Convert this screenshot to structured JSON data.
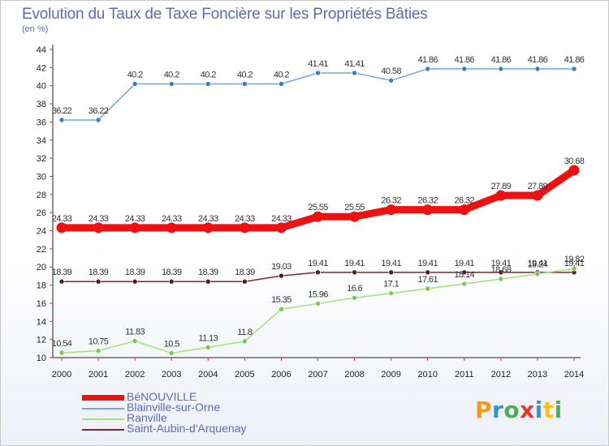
{
  "header": {
    "title": "Evolution du Taux de Taxe Foncière sur les Propriétés Bâties",
    "unit": "(en %)"
  },
  "brand": {
    "letters": [
      "P",
      "r",
      "o",
      "x",
      "i",
      "t",
      "i"
    ],
    "colors": [
      "#f29a1a",
      "#3a8fd6",
      "#4caf50",
      "#e03b2e",
      "#3a8fd6",
      "#f2c21a",
      "#4caf50"
    ]
  },
  "chart_data": {
    "type": "line",
    "x": [
      "2000",
      "2001",
      "2002",
      "2003",
      "2004",
      "2005",
      "2006",
      "2007",
      "2008",
      "2009",
      "2010",
      "2011",
      "2012",
      "2013",
      "2014"
    ],
    "ylim": [
      10,
      44
    ],
    "yticks": [
      10,
      12,
      14,
      16,
      18,
      20,
      22,
      24,
      26,
      28,
      30,
      32,
      34,
      36,
      38,
      40,
      42,
      44
    ],
    "grid": false,
    "legend_position": "bottom-left",
    "series": [
      {
        "name": "BéNOUVILLE",
        "color": "#ee1111",
        "emphasis": true,
        "values": [
          24.33,
          24.33,
          24.33,
          24.33,
          24.33,
          24.33,
          24.33,
          25.55,
          25.55,
          26.32,
          26.32,
          26.32,
          27.89,
          27.89,
          30.68
        ],
        "labels": [
          "24.33",
          "24.33",
          "24.33",
          "24.33",
          "24.33",
          "24.33",
          "24.33",
          "25.55",
          "25.55",
          "26.32",
          "26.32",
          "26.32",
          "27.89",
          "27.89",
          "30.68"
        ]
      },
      {
        "name": "Blainville-sur-Orne",
        "color": "#6fa8dc",
        "marker": "#3a7ec2",
        "values": [
          36.22,
          36.22,
          40.2,
          40.2,
          40.2,
          40.2,
          40.2,
          41.41,
          41.41,
          40.58,
          41.86,
          41.86,
          41.86,
          41.86,
          41.86
        ],
        "labels": [
          "36.22",
          "36.22",
          "40.2",
          "40.2",
          "40.2",
          "40.2",
          "40.2",
          "41.41",
          "41.41",
          "40.58",
          "41.86",
          "41.86",
          "41.86",
          "41.86",
          "41.86"
        ]
      },
      {
        "name": "Ranville",
        "color": "#a6e07a",
        "marker": "#7ec850",
        "values": [
          10.54,
          10.75,
          11.83,
          10.5,
          11.13,
          11.8,
          15.35,
          15.96,
          16.6,
          17.1,
          17.61,
          18.14,
          18.68,
          19.24,
          19.82
        ],
        "labels": [
          "10.54",
          "10.75",
          "11.83",
          "10.5",
          "11.13",
          "11.8",
          "15.35",
          "15.96",
          "16.6",
          "17.1",
          "17.61",
          "18.14",
          "18.68",
          "19.24",
          "19.82"
        ]
      },
      {
        "name": "Saint-Aubin-d'Arquenay",
        "color": "#7a2a2a",
        "marker": "#5a1a1a",
        "values": [
          18.39,
          18.39,
          18.39,
          18.39,
          18.39,
          18.39,
          19.03,
          19.41,
          19.41,
          19.41,
          19.41,
          19.41,
          19.41,
          19.41,
          19.41
        ],
        "labels": [
          "18.39",
          "18.39",
          "18.39",
          "18.39",
          "18.39",
          "18.39",
          "19.03",
          "19.41",
          "19.41",
          "19.41",
          "19.41",
          "19.41",
          "19.41",
          "19.41",
          "19.41"
        ]
      }
    ]
  }
}
